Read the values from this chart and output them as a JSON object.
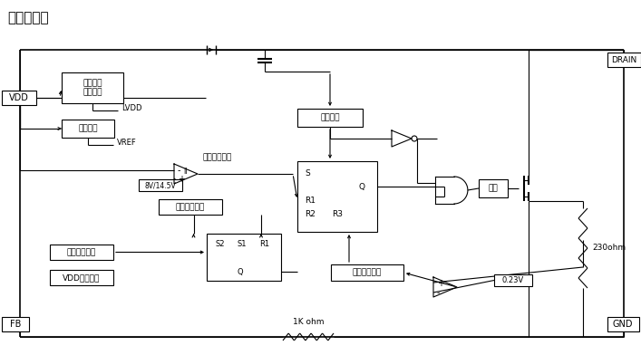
{
  "title": "内部方框图",
  "title_fontsize": 11,
  "bg_color": "#ffffff",
  "line_color": "#000000",
  "labels": {
    "VDD": "VDD",
    "FB": "FB",
    "DRAIN": "DRAIN",
    "GND": "GND",
    "inner_power": "内部电源\n产生电路",
    "reference": "基准电路",
    "LVDD": "LVDD",
    "VREF": "VREF",
    "uvp_label": "欠压保护电路",
    "bw14": "8V/14.5V",
    "otp": "过温保护电路",
    "ovp": "过压保护电路",
    "vdd_clamp": "VDD钳位电路",
    "oscillator": "振荡电路",
    "leading_edge": "前沿消隐电路",
    "drive": "驱动",
    "R1_top": "R1",
    "R2": "R2",
    "R3": "R3",
    "S_top": "S",
    "Q_top": "Q",
    "S1": "S1",
    "R1_bot": "R1",
    "Q_bot": "Q",
    "S2": "S2",
    "v023": "0.23V",
    "ohm230": "230ohm",
    "ohm1k": "1K ohm"
  }
}
